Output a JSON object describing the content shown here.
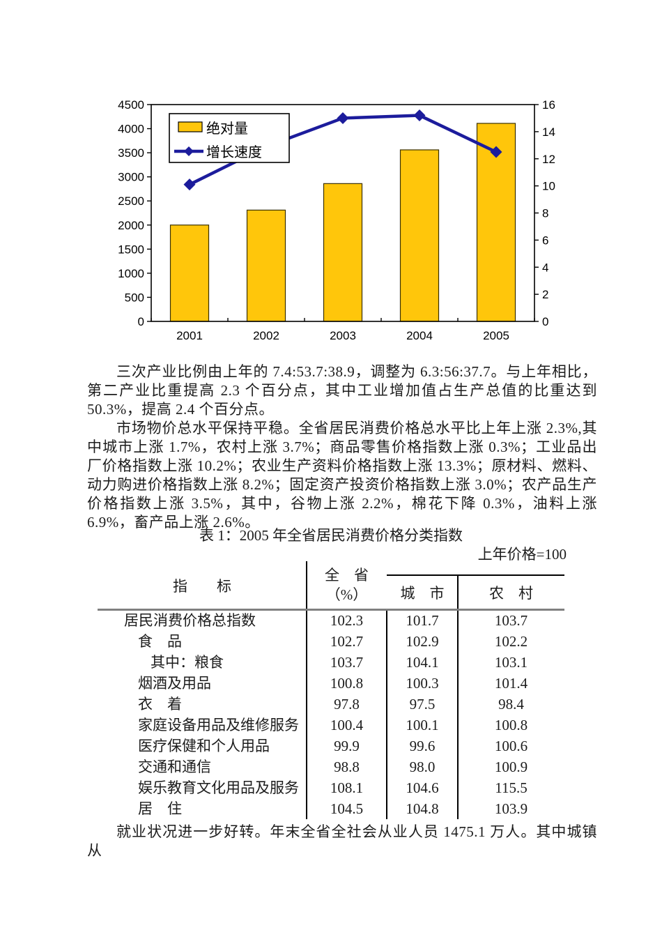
{
  "chart_data": {
    "type": "bar+line combo",
    "categories": [
      "2001",
      "2002",
      "2003",
      "2004",
      "2005"
    ],
    "series": [
      {
        "name": "绝对量",
        "type": "bar",
        "axis": "left",
        "color": "#FFC60B",
        "values": [
          2000,
          2310,
          2860,
          3560,
          4110
        ]
      },
      {
        "name": "增长速度",
        "type": "line",
        "axis": "right",
        "color": "#1C1C9C",
        "values": [
          10.1,
          12.9,
          15.0,
          15.2,
          12.5
        ]
      }
    ],
    "title": "",
    "xlabel": "",
    "ylabel": "",
    "left_axis": {
      "min": 0,
      "max": 4500,
      "step": 500
    },
    "right_axis": {
      "min": 0,
      "max": 16,
      "step": 2
    },
    "legend_position": "top-left",
    "grid": false
  },
  "paragraphs": {
    "p1": "三次产业比例由上年的 7.4:53.7:38.9，调整为 6.3:56:37.7。与上年相比，第二产业比重提高 2.3 个百分点，其中工业增加值占生产总值的比重达到 50.3%，提高 2.4 个百分点。",
    "p2": "市场物价总水平保持平稳。全省居民消费价格总水平比上年上涨 2.3%,其中城市上涨 1.7%，农村上涨 3.7%；商品零售价格指数上涨 0.3%；工业品出厂价格指数上涨 10.2%；农业生产资料价格指数上涨 13.3%；原材料、燃料、动力购进价格指数上涨 8.2%；固定资产投资价格指数上涨 3.0%；农产品生产价格指数上涨 3.5%，其中，谷物上涨 2.2%，棉花下降 0.3%，油料上涨 6.9%，畜产品上涨 2.6%。",
    "closing": "就业状况进一步好转。年末全省全社会从业人员 1475.1 万人。其中城镇从"
  },
  "table": {
    "title": "表 1：2005 年全省居民消费价格分类指数",
    "note": "上年价格=100",
    "header": {
      "indicator": "指　　标",
      "province_line1": "全　省",
      "province_line2": "（%）",
      "city": "城　市",
      "rural": "农　村"
    },
    "rows": [
      {
        "label": "居民消费价格总指数",
        "indent": 0,
        "province": "102.3",
        "city": "101.7",
        "rural": "103.7"
      },
      {
        "label": "食　品",
        "indent": 1,
        "province": "102.7",
        "city": "102.9",
        "rural": "102.2"
      },
      {
        "label": "其中：粮食",
        "indent": 2,
        "province": "103.7",
        "city": "104.1",
        "rural": "103.1"
      },
      {
        "label": "烟酒及用品",
        "indent": 1,
        "province": "100.8",
        "city": "100.3",
        "rural": "101.4"
      },
      {
        "label": "衣　着",
        "indent": 1,
        "province": "97.8",
        "city": "97.5",
        "rural": "98.4"
      },
      {
        "label": "家庭设备用品及维修服务",
        "indent": 1,
        "province": "100.4",
        "city": "100.1",
        "rural": "100.8"
      },
      {
        "label": "医疗保健和个人用品",
        "indent": 1,
        "province": "99.9",
        "city": "99.6",
        "rural": "100.6"
      },
      {
        "label": "交通和通信",
        "indent": 1,
        "province": "98.8",
        "city": "98.0",
        "rural": "100.9"
      },
      {
        "label": "娱乐教育文化用品及服务",
        "indent": 1,
        "province": "108.1",
        "city": "104.6",
        "rural": "115.5"
      },
      {
        "label": "居　住",
        "indent": 1,
        "province": "104.5",
        "city": "104.8",
        "rural": "103.9"
      }
    ]
  }
}
